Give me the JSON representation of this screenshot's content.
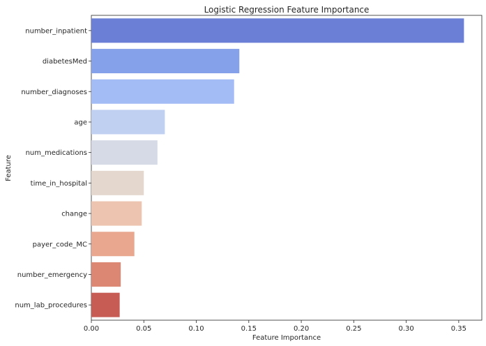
{
  "chart_data": {
    "type": "bar",
    "orientation": "horizontal",
    "title": "Logistic Regression Feature Importance",
    "xlabel": "Feature Importance",
    "ylabel": "Feature",
    "xlim": [
      0,
      0.372
    ],
    "xticks": [
      0.0,
      0.05,
      0.1,
      0.15,
      0.2,
      0.25,
      0.3,
      0.35
    ],
    "xtick_labels": [
      "0.00",
      "0.05",
      "0.10",
      "0.15",
      "0.20",
      "0.25",
      "0.30",
      "0.35"
    ],
    "grid": false,
    "categories": [
      "number_inpatient",
      "diabetesMed",
      "number_diagnoses",
      "age",
      "num_medications",
      "time_in_hospital",
      "change",
      "payer_code_MC",
      "number_emergency",
      "num_lab_procedures"
    ],
    "values": [
      0.355,
      0.141,
      0.136,
      0.07,
      0.063,
      0.05,
      0.048,
      0.041,
      0.028,
      0.027
    ],
    "colors": [
      "#6a7fd5",
      "#85a1e9",
      "#a4bcf5",
      "#bfd0f1",
      "#d5dae6",
      "#e4d7ce",
      "#edc4af",
      "#e8a78e",
      "#dc8773",
      "#c75c55"
    ]
  }
}
